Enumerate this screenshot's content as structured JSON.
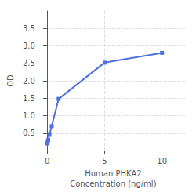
{
  "chart_data": {
    "type": "line",
    "x": [
      0.0,
      0.05,
      0.1,
      0.2,
      0.4,
      1.0,
      5.0,
      10.0
    ],
    "values": [
      0.2,
      0.25,
      0.3,
      0.45,
      0.7,
      1.48,
      2.52,
      2.8
    ],
    "xlabel": "Human PHKA2\nConcentration (ng/ml)",
    "ylabel": "OD",
    "xlim": [
      -0.5,
      12
    ],
    "ylim": [
      0.0,
      4.0
    ],
    "xticks": [
      0,
      5,
      10
    ],
    "yticks": [
      {
        "value": 0.5,
        "label": "0.5"
      },
      {
        "value": 1.0,
        "label": "1.0"
      },
      {
        "value": 1.5,
        "label": "1.5"
      },
      {
        "value": 2.0,
        "label": "2.0"
      },
      {
        "value": 2.5,
        "label": "2.5"
      },
      {
        "value": 3.0,
        "label": "3.0"
      },
      {
        "value": 3.5,
        "label": "3.5"
      }
    ],
    "marker": "square",
    "grid": true
  }
}
